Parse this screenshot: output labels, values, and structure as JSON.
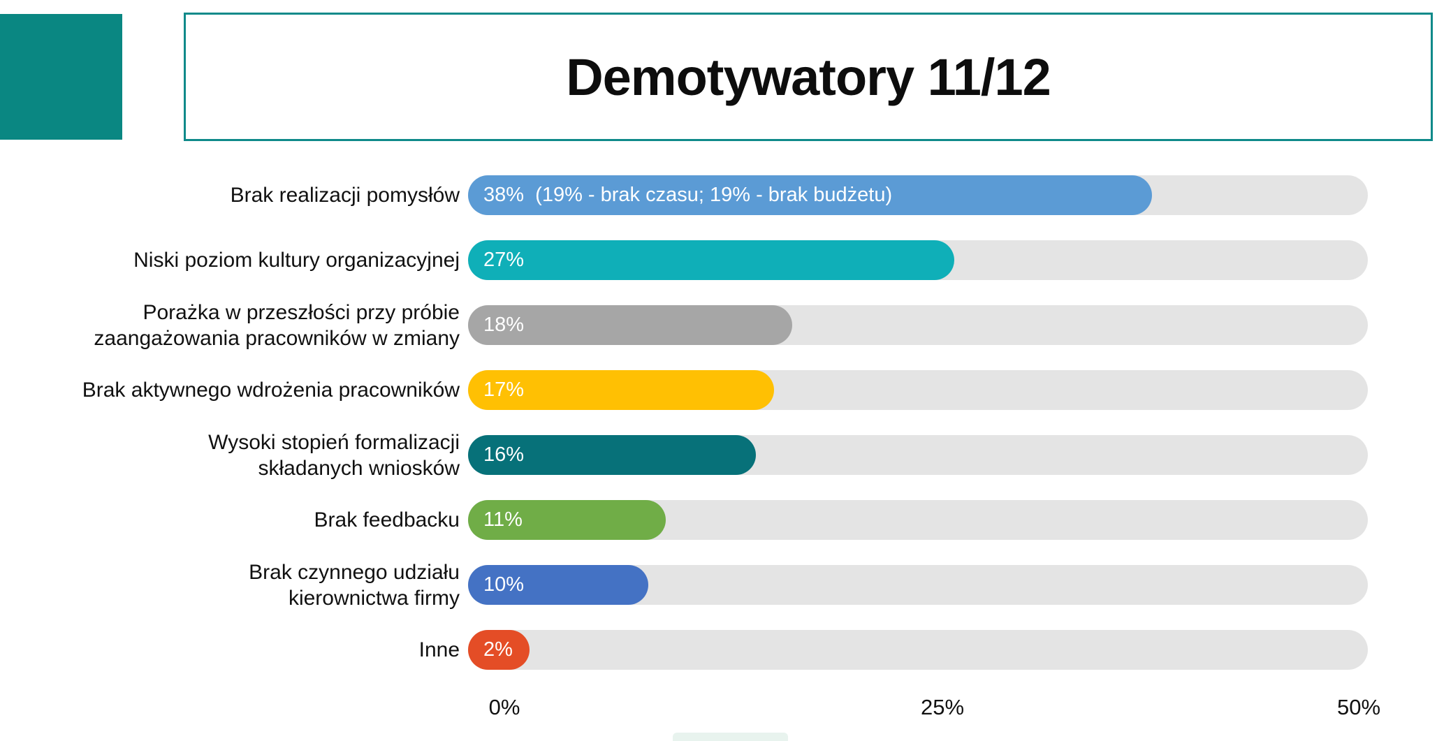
{
  "slide": {
    "title": "Demotywatory 11/12",
    "accent_color": "#0A8782",
    "title_border_color": "#0F8A8A"
  },
  "chart_data": {
    "type": "bar",
    "orientation": "horizontal",
    "title": "Demotywatory 11/12",
    "xlabel": "",
    "ylabel": "",
    "xlim": [
      0,
      50
    ],
    "x_ticks": [
      "0%",
      "25%",
      "50%"
    ],
    "grid": false,
    "legend": "none",
    "track_color": "#E4E4E4",
    "categories": [
      "Brak realizacji pomysłów",
      "Niski poziom kultury organizacyjnej",
      "Porażka w przeszłości przy próbie zaangażowania pracowników w zmiany",
      "Brak aktywnego wdrożenia pracowników",
      "Wysoki stopień formalizacji składanych wniosków",
      "Brak feedbacku",
      "Brak czynnego udziału kierownictwa firmy",
      "Inne"
    ],
    "values": [
      38,
      27,
      18,
      17,
      16,
      11,
      10,
      2
    ],
    "bars": [
      {
        "label_lines": [
          "Brak realizacji pomysłów"
        ],
        "value": 38,
        "value_label": "38%  (19% - brak czasu; 19% - brak budżetu)",
        "color": "#5B9BD5"
      },
      {
        "label_lines": [
          "Niski poziom kultury organizacyjnej"
        ],
        "value": 27,
        "value_label": "27%",
        "color": "#0FAFB8"
      },
      {
        "label_lines": [
          "Porażka w przeszłości przy próbie",
          "zaangażowania pracowników w zmiany"
        ],
        "value": 18,
        "value_label": "18%",
        "color": "#A6A6A6"
      },
      {
        "label_lines": [
          "Brak aktywnego wdrożenia pracowników"
        ],
        "value": 17,
        "value_label": "17%",
        "color": "#FFC003"
      },
      {
        "label_lines": [
          "Wysoki stopień formalizacji",
          "składanych wniosków"
        ],
        "value": 16,
        "value_label": "16%",
        "color": "#077179"
      },
      {
        "label_lines": [
          "Brak feedbacku"
        ],
        "value": 11,
        "value_label": "11%",
        "color": "#70AD47"
      },
      {
        "label_lines": [
          "Brak czynnego udziału",
          "kierownictwa firmy"
        ],
        "value": 10,
        "value_label": "10%",
        "color": "#4472C4"
      },
      {
        "label_lines": [
          "Inne"
        ],
        "value": 2,
        "value_label": "2%",
        "color": "#E44D26"
      }
    ]
  }
}
